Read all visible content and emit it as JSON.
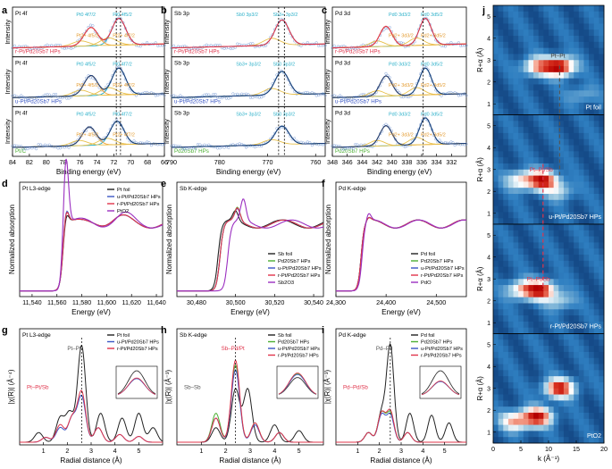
{
  "chart_data": [
    {
      "id": "a",
      "type": "line",
      "panel_letter": "a",
      "title": "",
      "xlabel": "Binding energy (eV)",
      "ylabel": "Intensity",
      "xlim": [
        84,
        66
      ],
      "x_ticks": [
        84,
        82,
        80,
        78,
        76,
        74,
        72,
        70,
        68,
        66
      ],
      "stack": [
        {
          "edge": "Pt 4f",
          "sample": "r-Pt/Pd20Sb7 HPs",
          "labels": [
            "Pt0 4f7/2",
            "Pt0 4f5/2",
            "Pt2+ 4f5/2",
            "Pt2+ 4f7/2"
          ],
          "peaks": [
            [
              71.4,
              0.8
            ],
            [
              74.7,
              0.55
            ]
          ],
          "dashed": [
            71.2,
            71.7
          ]
        },
        {
          "edge": "Pt 4f",
          "sample": "u-Pt/Pd20Sb7 HPs",
          "labels": [
            "Pt0 4f5/2",
            "Pt0 4f7/2",
            "Pt2+ 4f5/2",
            "Pt2+ 4f7/2"
          ],
          "peaks": [
            [
              71.4,
              0.8
            ],
            [
              74.7,
              0.6
            ]
          ],
          "dashed": [
            71.2,
            71.7
          ]
        },
        {
          "edge": "Pt 4f",
          "sample": "Pt/C",
          "labels": [
            "Pt0 4f5/2",
            "Pt0 4f7/2",
            "Pt2+ 4f5/2",
            "Pt2+ 4f7/2"
          ],
          "peaks": [
            [
              71.6,
              0.7
            ],
            [
              74.9,
              0.55
            ]
          ],
          "dashed": [
            71.2,
            71.7
          ]
        }
      ]
    },
    {
      "id": "b",
      "type": "line",
      "panel_letter": "b",
      "title": "",
      "xlabel": "Binding energy (eV)",
      "ylabel": "Intensity",
      "xlim": [
        790,
        758
      ],
      "x_ticks": [
        790,
        780,
        770,
        760
      ],
      "stack": [
        {
          "edge": "Sb 3p",
          "sample": "r-Pt/Pd20Sb7 HPs",
          "labels": [
            "Sb0 3p3/2",
            "Sb3+ 3p3/2"
          ],
          "peaks": [
            [
              767,
              0.75
            ]
          ],
          "dashed": [
            766.5,
            767.7
          ]
        },
        {
          "edge": "Sb 3p",
          "sample": "u-Pt/Pd20Sb7 HPs",
          "labels": [
            "Sb3+ 3p3/2",
            "Sb0 3p3/2"
          ],
          "peaks": [
            [
              767,
              0.7
            ]
          ],
          "dashed": [
            766.5,
            767.7
          ]
        },
        {
          "edge": "Sb 3p",
          "sample": "Pd20Sb7 HPs",
          "labels": [
            "Sb3+ 3p3/2",
            "Sb0 3p3/2"
          ],
          "peaks": [
            [
              767,
              0.55
            ]
          ],
          "dashed": [
            766.5,
            767.7
          ]
        }
      ]
    },
    {
      "id": "c",
      "type": "line",
      "panel_letter": "c",
      "title": "",
      "xlabel": "Binding energy (eV)",
      "ylabel": "Intensity",
      "xlim": [
        348,
        330
      ],
      "x_ticks": [
        348,
        346,
        344,
        342,
        340,
        338,
        336,
        334,
        332
      ],
      "stack": [
        {
          "edge": "Pd 3d",
          "sample": "r-Pt/Pd20Sb7 HPs",
          "labels": [
            "Pd0 3d3/2",
            "Pd0 3d5/2",
            "Pd2+ 3d3/2",
            "Pd2+ 3d5/2"
          ],
          "peaks": [
            [
              335.5,
              0.8
            ],
            [
              340.8,
              0.6
            ]
          ],
          "dashed": [
            335.8
          ]
        },
        {
          "edge": "Pd 3d",
          "sample": "u-Pt/Pd20Sb7 HPs",
          "labels": [
            "Pd0 3d3/2",
            "Pd0 3d5/2",
            "Pd2+ 3d3/2",
            "Pd2+ 3d5/2"
          ],
          "peaks": [
            [
              335.5,
              0.8
            ],
            [
              340.8,
              0.6
            ]
          ],
          "dashed": [
            335.8
          ]
        },
        {
          "edge": "Pd 3d",
          "sample": "Pd20Sb7 HPs",
          "labels": [
            "Pd0 3d3/2",
            "Pd0 3d5/2",
            "Pd2+ 3d3/2",
            "Pd2+ 3d5/2"
          ],
          "peaks": [
            [
              335.5,
              0.8
            ],
            [
              340.8,
              0.6
            ]
          ],
          "dashed": [
            335.8
          ]
        }
      ]
    },
    {
      "id": "d",
      "type": "line",
      "panel_letter": "d",
      "edge": "Pt L3-edge",
      "xlabel": "Energy (eV)",
      "ylabel": "Normalized absorption",
      "xlim": [
        11530,
        11645
      ],
      "x_ticks": [
        11540,
        11560,
        11580,
        11600,
        11620,
        11640
      ],
      "legend": [
        "Pt foil",
        "u-Pt/Pd20Sb7 HPs",
        "r-Pt/Pd20Sb7 HPs",
        "PtO2"
      ],
      "legend_position": "top-right",
      "series": [
        {
          "name": "Pt foil",
          "color": "#222222",
          "edge": 11565,
          "peak": [
            11567,
            0.22
          ],
          "osc": [
            [
              11588,
              0.05
            ],
            [
              11612,
              0.08
            ]
          ]
        },
        {
          "name": "u-Pt/Pd20Sb7 HPs",
          "color": "#3a56c4",
          "edge": 11565,
          "peak": [
            11567,
            0.3
          ],
          "osc": [
            [
              11588,
              0.05
            ],
            [
              11612,
              0.08
            ]
          ]
        },
        {
          "name": "r-Pt/Pd20Sb7 HPs",
          "color": "#e0344b",
          "edge": 11565,
          "peak": [
            11567,
            0.28
          ],
          "osc": [
            [
              11588,
              0.05
            ],
            [
              11612,
              0.08
            ]
          ]
        },
        {
          "name": "PtO2",
          "color": "#9b2fc0",
          "edge": 11566,
          "peak": [
            11567,
            1.25
          ],
          "osc": [
            [
              11585,
              0.05
            ],
            [
              11615,
              0.12
            ]
          ]
        }
      ]
    },
    {
      "id": "e",
      "type": "line",
      "panel_letter": "e",
      "edge": "Sb K-edge",
      "xlabel": "Energy (eV)",
      "ylabel": "Normalized absorption",
      "xlim": [
        30470,
        30545
      ],
      "x_ticks": [
        30480,
        30500,
        30520,
        30540
      ],
      "legend": [
        "Sb foil",
        "Pd20Sb7 HPs",
        "u-Pt/Pd20Sb7 HPs",
        "r-Pt/Pd20Sb7 HPs",
        "Sb2O3"
      ],
      "legend_position": "bottom-right",
      "series": [
        {
          "name": "Sb foil",
          "color": "#222222",
          "edge": 30491,
          "peak": [
            30500,
            0.15
          ]
        },
        {
          "name": "Pd20Sb7 HPs",
          "color": "#4caf32",
          "edge": 30492,
          "peak": [
            30501,
            0.2
          ]
        },
        {
          "name": "u-Pt/Pd20Sb7 HPs",
          "color": "#3a56c4",
          "edge": 30492,
          "peak": [
            30501,
            0.18
          ]
        },
        {
          "name": "r-Pt/Pd20Sb7 HPs",
          "color": "#e0344b",
          "edge": 30492,
          "peak": [
            30501,
            0.19
          ]
        },
        {
          "name": "Sb2O3",
          "color": "#9b2fc0",
          "edge": 30496,
          "peak": [
            30504,
            0.32
          ]
        }
      ]
    },
    {
      "id": "f",
      "type": "line",
      "panel_letter": "f",
      "edge": "Pd K-edge",
      "xlabel": "Energy (eV)",
      "ylabel": "Normalized absorption",
      "xlim": [
        24300,
        24560
      ],
      "x_ticks": [
        24300,
        24400,
        24500
      ],
      "legend": [
        "Pd foil",
        "Pd20Sb7 HPs",
        "u-Pt/Pd20Sb7 HPs",
        "r-Pt/Pd20Sb7 HPs",
        "PdO"
      ],
      "legend_position": "bottom-right",
      "series": [
        {
          "name": "Pd foil",
          "color": "#222222",
          "edge": 24350,
          "peak": [
            24365,
            0.05
          ]
        },
        {
          "name": "Pd20Sb7 HPs",
          "color": "#4caf32",
          "edge": 24350,
          "peak": [
            24365,
            0.05
          ]
        },
        {
          "name": "u-Pt/Pd20Sb7 HPs",
          "color": "#3a56c4",
          "edge": 24350,
          "peak": [
            24365,
            0.05
          ]
        },
        {
          "name": "r-Pt/Pd20Sb7 HPs",
          "color": "#e0344b",
          "edge": 24350,
          "peak": [
            24365,
            0.05
          ]
        },
        {
          "name": "PdO",
          "color": "#9b2fc0",
          "edge": 24352,
          "peak": [
            24365,
            0.12
          ]
        }
      ]
    },
    {
      "id": "g",
      "type": "line",
      "panel_letter": "g",
      "edge": "Pt L3-edge",
      "xlabel": "Radial distance (Å)",
      "ylabel": "|χ(R)| (Å⁻⁴)",
      "xlim": [
        0,
        6
      ],
      "x_ticks": [
        1,
        2,
        3,
        4,
        5
      ],
      "annotations": [
        "Pt–Pt",
        "Pt–Pt/Sb"
      ],
      "legend": [
        "Pt foil",
        "u-Pt/Pd20Sb7 HPs",
        "r-Pt/Pd20Sb7 HPs"
      ],
      "legend_position": "top-right",
      "series": [
        {
          "name": "Pt foil",
          "color": "#222222",
          "peaks": [
            [
              0.8,
              0.1
            ],
            [
              1.7,
              0.25
            ],
            [
              2.1,
              0.3
            ],
            [
              2.6,
              1.0
            ],
            [
              3.4,
              0.3
            ],
            [
              4.3,
              0.25
            ],
            [
              5.0,
              0.3
            ],
            [
              5.6,
              0.15
            ]
          ]
        },
        {
          "name": "u-Pt/Pd20Sb7 HPs",
          "color": "#3a56c4",
          "peaks": [
            [
              1.1,
              0.05
            ],
            [
              1.7,
              0.15
            ],
            [
              2.2,
              0.25
            ],
            [
              2.6,
              0.47
            ],
            [
              3.3,
              0.15
            ],
            [
              4.2,
              0.08
            ],
            [
              5.0,
              0.06
            ]
          ]
        },
        {
          "name": "r-Pt/Pd20Sb7 HPs",
          "color": "#e0344b",
          "peaks": [
            [
              1.1,
              0.05
            ],
            [
              1.7,
              0.18
            ],
            [
              2.2,
              0.25
            ],
            [
              2.6,
              0.52
            ],
            [
              3.3,
              0.15
            ],
            [
              4.2,
              0.08
            ],
            [
              5.0,
              0.06
            ]
          ]
        }
      ]
    },
    {
      "id": "h",
      "type": "line",
      "panel_letter": "h",
      "edge": "Sb K-edge",
      "xlabel": "Radial distance (Å)",
      "ylabel": "|χ(R)| (Å⁻³)",
      "xlim": [
        0,
        6
      ],
      "x_ticks": [
        1,
        2,
        3,
        4,
        5
      ],
      "annotations": [
        "Sb–Pd/Pt",
        "Sb–Sb"
      ],
      "legend": [
        "Sb foil",
        "Pd20Sb7 HPs",
        "u-Pt/Pd20Sb7 HPs",
        "r-Pt/Pd20Sb7 HPs"
      ],
      "legend_position": "top-right",
      "series": [
        {
          "name": "Sb foil",
          "color": "#222222",
          "peaks": [
            [
              1.6,
              0.15
            ],
            [
              2.4,
              0.55
            ],
            [
              2.9,
              0.55
            ],
            [
              4.0,
              0.18
            ],
            [
              5.0,
              0.12
            ]
          ]
        },
        {
          "name": "Pd20Sb7 HPs",
          "color": "#4caf32",
          "peaks": [
            [
              1.6,
              0.3
            ],
            [
              2.4,
              0.8
            ],
            [
              3.2,
              0.2
            ],
            [
              4.2,
              0.1
            ]
          ]
        },
        {
          "name": "u-Pt/Pd20Sb7 HPs",
          "color": "#3a56c4",
          "peaks": [
            [
              1.6,
              0.25
            ],
            [
              2.4,
              0.75
            ],
            [
              3.2,
              0.18
            ],
            [
              4.2,
              0.1
            ]
          ]
        },
        {
          "name": "r-Pt/Pd20Sb7 HPs",
          "color": "#e0344b",
          "peaks": [
            [
              1.6,
              0.25
            ],
            [
              2.4,
              0.85
            ],
            [
              3.2,
              0.2
            ],
            [
              4.2,
              0.1
            ]
          ]
        }
      ]
    },
    {
      "id": "i",
      "type": "line",
      "panel_letter": "i",
      "edge": "Pd K-edge",
      "xlabel": "Radial distance (Å)",
      "ylabel": "|χ(R)| (Å⁻³)",
      "xlim": [
        0,
        6
      ],
      "x_ticks": [
        1,
        2,
        3,
        4,
        5
      ],
      "annotations": [
        "Pd–Pd",
        "Pd–Pd/Sb"
      ],
      "legend": [
        "Pd foil",
        "Pd20Sb7 HPs",
        "u-Pt/Pd20Sb7 HPs",
        "r-Pt/Pd20Sb7 HPs"
      ],
      "legend_position": "top-right",
      "series": [
        {
          "name": "Pd foil",
          "color": "#222222",
          "peaks": [
            [
              1.5,
              0.1
            ],
            [
              2.1,
              0.3
            ],
            [
              2.5,
              1.0
            ],
            [
              3.4,
              0.3
            ],
            [
              4.4,
              0.28
            ],
            [
              5.2,
              0.2
            ]
          ]
        },
        {
          "name": "Pd20Sb7 HPs",
          "color": "#4caf32",
          "peaks": [
            [
              1.5,
              0.1
            ],
            [
              2.1,
              0.3
            ],
            [
              2.5,
              0.3
            ],
            [
              3.3,
              0.1
            ]
          ]
        },
        {
          "name": "u-Pt/Pd20Sb7 HPs",
          "color": "#3a56c4",
          "peaks": [
            [
              1.5,
              0.1
            ],
            [
              2.1,
              0.28
            ],
            [
              2.5,
              0.28
            ],
            [
              3.3,
              0.1
            ]
          ]
        },
        {
          "name": "r-Pt/Pd20Sb7 HPs",
          "color": "#e0344b",
          "peaks": [
            [
              1.5,
              0.1
            ],
            [
              2.1,
              0.3
            ],
            [
              2.5,
              0.32
            ],
            [
              3.3,
              0.1
            ]
          ]
        }
      ]
    },
    {
      "id": "j",
      "type": "heatmap",
      "panel_letter": "j",
      "xlabel": "k (Å⁻¹)",
      "ylabel": "R+α (Å)",
      "xlim": [
        0,
        20
      ],
      "x_ticks": [
        0,
        5,
        10,
        15,
        20
      ],
      "ylim": [
        0.5,
        5.5
      ],
      "y_ticks": [
        1,
        2,
        3,
        4,
        5
      ],
      "colormap": [
        "#08306b",
        "#2f7fc1",
        "#9ecae1",
        "#ffffff",
        "#f4a08a",
        "#d7301f",
        "#b30000"
      ],
      "panels": [
        {
          "sample": "Pt foil",
          "annotation": "Pt–Pt",
          "blobs": [
            [
              12,
              2.7,
              1.0
            ],
            [
              8,
              2.7,
              0.6
            ],
            [
              16,
              1.4,
              0.2
            ]
          ]
        },
        {
          "sample": "u-Pt/Pd20Sb7 HPs",
          "annotation": "Pt–Pt/Sb",
          "blobs": [
            [
              9,
              2.5,
              0.9
            ],
            [
              5,
              2.5,
              0.5
            ],
            [
              12,
              2.0,
              0.3
            ]
          ]
        },
        {
          "sample": "r-Pt/Pd20Sb7 HPs",
          "annotation": "Pt–Pt/Sb",
          "blobs": [
            [
              8.5,
              2.5,
              0.9
            ],
            [
              5,
              2.5,
              0.5
            ],
            [
              12,
              2.0,
              0.3
            ]
          ]
        },
        {
          "sample": "PtO2",
          "annotation": "",
          "blobs": [
            [
              12,
              3.0,
              0.9
            ],
            [
              8,
              1.7,
              0.9
            ],
            [
              4,
              1.5,
              0.6
            ]
          ]
        }
      ],
      "dashed_lines": [
        {
          "color": "#555555",
          "k": 12
        },
        {
          "color": "#e0344b",
          "k": 9
        }
      ]
    }
  ]
}
